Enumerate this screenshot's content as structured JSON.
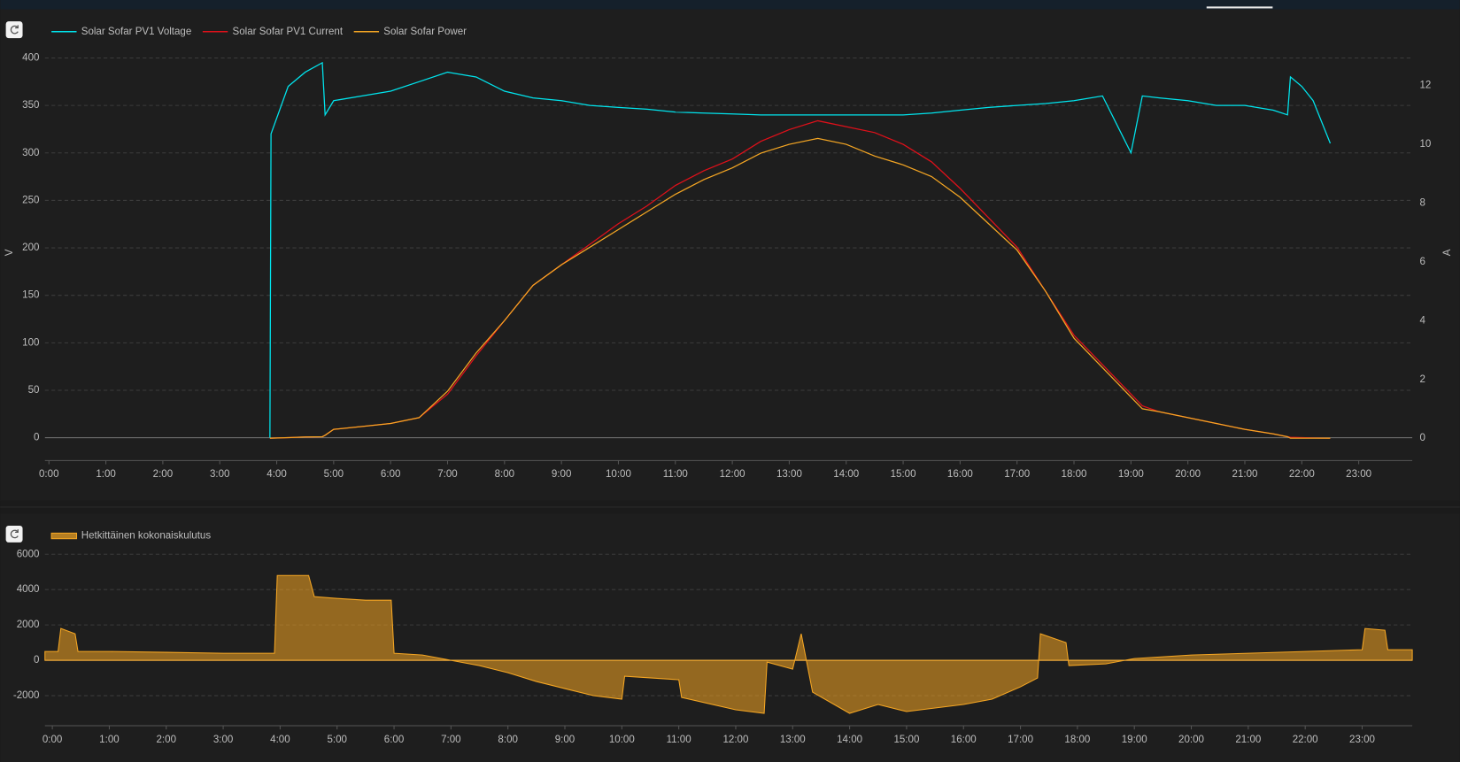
{
  "chart_data": [
    {
      "type": "line",
      "y_label": "V",
      "y2_label": "A",
      "grid": true,
      "xlim": [
        -0.07,
        23.94
      ],
      "ylim": [
        -24,
        414
      ],
      "y2lim": [
        -0.76,
        13.39
      ],
      "xticks": [
        {
          "value": 0,
          "label": "0:00"
        },
        {
          "value": 1,
          "label": "1:00"
        },
        {
          "value": 2,
          "label": "2:00"
        },
        {
          "value": 3,
          "label": "3:00"
        },
        {
          "value": 4,
          "label": "4:00"
        },
        {
          "value": 5,
          "label": "5:00"
        },
        {
          "value": 6,
          "label": "6:00"
        },
        {
          "value": 7,
          "label": "7:00"
        },
        {
          "value": 8,
          "label": "8:00"
        },
        {
          "value": 9,
          "label": "9:00"
        },
        {
          "value": 10,
          "label": "10:00"
        },
        {
          "value": 11,
          "label": "11:00"
        },
        {
          "value": 12,
          "label": "12:00"
        },
        {
          "value": 13,
          "label": "13:00"
        },
        {
          "value": 14,
          "label": "14:00"
        },
        {
          "value": 15,
          "label": "15:00"
        },
        {
          "value": 16,
          "label": "16:00"
        },
        {
          "value": 17,
          "label": "17:00"
        },
        {
          "value": 18,
          "label": "18:00"
        },
        {
          "value": 19,
          "label": "19:00"
        },
        {
          "value": 20,
          "label": "20:00"
        },
        {
          "value": 21,
          "label": "21:00"
        },
        {
          "value": 22,
          "label": "22:00"
        },
        {
          "value": 23,
          "label": "23:00"
        }
      ],
      "yticks": [
        0,
        50,
        100,
        150,
        200,
        250,
        300,
        350,
        400
      ],
      "y2ticks": [
        0,
        2,
        4,
        6,
        8,
        10,
        12
      ],
      "x": [
        3.88,
        3.9,
        4.2,
        4.5,
        4.8,
        4.85,
        5,
        5.5,
        6,
        6.5,
        7,
        7.5,
        8,
        8.5,
        9,
        9.5,
        10,
        10.5,
        11,
        11.5,
        12,
        12.5,
        13,
        13.5,
        14,
        14.5,
        15,
        15.5,
        16,
        16.5,
        17,
        17.5,
        18,
        18.5,
        18.75,
        19,
        19.2,
        19.5,
        20,
        20.5,
        21,
        21.5,
        21.75,
        21.8,
        22,
        22.2,
        22.5
      ],
      "series": [
        {
          "name": "Solar Sofar PV1 Voltage",
          "color": "#00e5ee",
          "axis": "y",
          "values": [
            0,
            320,
            370,
            385,
            395,
            340,
            355,
            360,
            365,
            375,
            385,
            380,
            365,
            358,
            355,
            350,
            348,
            346,
            343,
            342,
            341,
            340,
            340,
            340,
            340,
            340,
            340,
            342,
            345,
            348,
            350,
            352,
            355,
            360,
            330,
            300,
            360,
            358,
            355,
            350,
            350,
            345,
            340,
            380,
            370,
            355,
            310
          ]
        },
        {
          "name": "Solar Sofar PV1 Current",
          "color": "#e0101a",
          "axis": "y2",
          "values": [
            0,
            0,
            0.02,
            0.04,
            0.05,
            0.1,
            0.3,
            0.4,
            0.5,
            0.7,
            1.5,
            2.8,
            4.0,
            5.2,
            5.9,
            6.6,
            7.3,
            7.9,
            8.6,
            9.1,
            9.5,
            10.1,
            10.5,
            10.8,
            10.6,
            10.4,
            10.0,
            9.4,
            8.5,
            7.5,
            6.5,
            5.0,
            3.5,
            2.5,
            2.0,
            1.5,
            1.1,
            0.9,
            0.7,
            0.5,
            0.3,
            0.15,
            0.05,
            0.03,
            0.02,
            0.01,
            0
          ]
        },
        {
          "name": "Solar Sofar Power",
          "color": "#f5a623",
          "axis": "y2",
          "values": [
            0,
            0,
            0.02,
            0.04,
            0.05,
            0.1,
            0.3,
            0.4,
            0.5,
            0.7,
            1.6,
            2.9,
            4.0,
            5.2,
            5.9,
            6.5,
            7.1,
            7.7,
            8.3,
            8.8,
            9.2,
            9.7,
            10.0,
            10.2,
            10.0,
            9.6,
            9.3,
            8.9,
            8.2,
            7.3,
            6.4,
            5.0,
            3.4,
            2.4,
            1.9,
            1.4,
            1.0,
            0.9,
            0.7,
            0.5,
            0.3,
            0.15,
            0.05,
            0,
            0,
            0,
            0
          ]
        }
      ]
    },
    {
      "type": "area",
      "grid": true,
      "xlim": [
        -0.13,
        23.88
      ],
      "ylim": [
        -3700,
        6300
      ],
      "xticks": [
        {
          "value": 0,
          "label": "0:00"
        },
        {
          "value": 1,
          "label": "1:00"
        },
        {
          "value": 2,
          "label": "2:00"
        },
        {
          "value": 3,
          "label": "3:00"
        },
        {
          "value": 4,
          "label": "4:00"
        },
        {
          "value": 5,
          "label": "5:00"
        },
        {
          "value": 6,
          "label": "6:00"
        },
        {
          "value": 7,
          "label": "7:00"
        },
        {
          "value": 8,
          "label": "8:00"
        },
        {
          "value": 9,
          "label": "9:00"
        },
        {
          "value": 10,
          "label": "10:00"
        },
        {
          "value": 11,
          "label": "11:00"
        },
        {
          "value": 12,
          "label": "12:00"
        },
        {
          "value": 13,
          "label": "13:00"
        },
        {
          "value": 14,
          "label": "14:00"
        },
        {
          "value": 15,
          "label": "15:00"
        },
        {
          "value": 16,
          "label": "16:00"
        },
        {
          "value": 17,
          "label": "17:00"
        },
        {
          "value": 18,
          "label": "18:00"
        },
        {
          "value": 19,
          "label": "19:00"
        },
        {
          "value": 20,
          "label": "20:00"
        },
        {
          "value": 21,
          "label": "21:00"
        },
        {
          "value": 22,
          "label": "22:00"
        },
        {
          "value": 23,
          "label": "23:00"
        }
      ],
      "yticks": [
        -2000,
        0,
        2000,
        4000,
        6000
      ],
      "x": [
        -0.13,
        0.1,
        0.15,
        0.4,
        0.45,
        1,
        2,
        3,
        3.9,
        3.95,
        4.5,
        4.6,
        5,
        5.5,
        5.95,
        6.0,
        6.5,
        7,
        7.5,
        8,
        8.5,
        9,
        9.5,
        10,
        10.05,
        11,
        11.05,
        12,
        12.5,
        12.55,
        13,
        13.15,
        13.35,
        14,
        14.5,
        15,
        16,
        16.5,
        17,
        17.3,
        17.35,
        17.8,
        17.85,
        18.5,
        19,
        20,
        21,
        22,
        23,
        23.05,
        23.4,
        23.45,
        23.88
      ],
      "series": [
        {
          "name": "Hetkittäinen kokonaiskulutus",
          "color": "#f5a623",
          "values": [
            500,
            500,
            1800,
            1500,
            500,
            500,
            450,
            400,
            400,
            4800,
            4800,
            3600,
            3500,
            3400,
            3400,
            400,
            300,
            0,
            -300,
            -700,
            -1200,
            -1600,
            -2000,
            -2200,
            -900,
            -1100,
            -2100,
            -2800,
            -3000,
            -100,
            -500,
            1500,
            -1800,
            -3000,
            -2500,
            -2900,
            -2500,
            -2200,
            -1500,
            -1000,
            1500,
            1000,
            -300,
            -200,
            100,
            300,
            400,
            500,
            600,
            1800,
            1700,
            600,
            600
          ]
        }
      ]
    }
  ]
}
